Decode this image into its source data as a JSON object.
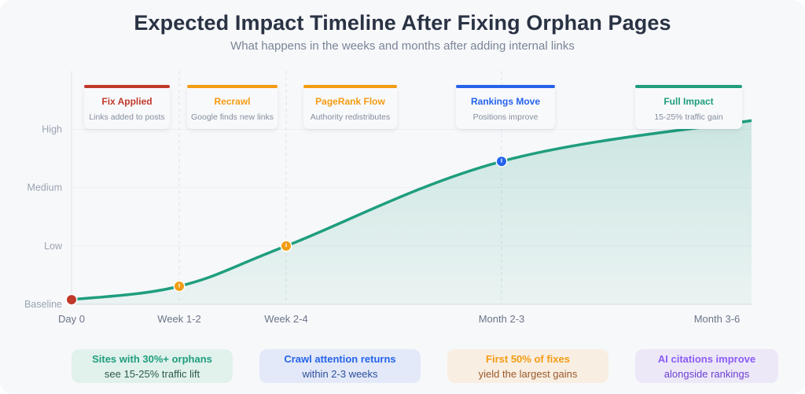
{
  "header": {
    "title": "Expected Impact Timeline After Fixing Orphan Pages",
    "subtitle": "What happens in the weeks and months after adding internal links"
  },
  "chart_data": {
    "type": "area",
    "title": "Expected Impact Timeline After Fixing Orphan Pages",
    "subtitle": "What happens in the weeks and months after adding internal links",
    "xlabel": "",
    "ylabel": "",
    "x_ticks": [
      "Day 0",
      "Week 1-2",
      "Week 2-4",
      "Month 2-3",
      "Month 3-6"
    ],
    "y_ticks": [
      "Baseline",
      "Low",
      "Medium",
      "High"
    ],
    "ylim": [
      0,
      3.3
    ],
    "grid": true,
    "series": [
      {
        "name": "Impact",
        "color": "#1f9e7e",
        "points": [
          {
            "x": "Day 0",
            "y": 0.08
          },
          {
            "x": "Week 1-2",
            "y": 0.31
          },
          {
            "x": "Week 2-4",
            "y": 1.0
          },
          {
            "x": "Month 2-3",
            "y": 2.45
          },
          {
            "x": "end",
            "y": 3.15
          }
        ]
      }
    ],
    "milestones": [
      {
        "x": "Day 0",
        "title": "Fix Applied",
        "desc": "Links added to posts",
        "color": "#c0392b",
        "marker": true
      },
      {
        "x": "Week 1-2",
        "title": "Recrawl",
        "desc": "Google finds new links",
        "color": "#f39c12",
        "marker": true
      },
      {
        "x": "Week 2-4",
        "title": "PageRank Flow",
        "desc": "Authority redistributes",
        "color": "#f39c12",
        "marker": true
      },
      {
        "x": "Month 2-3",
        "title": "Rankings Move",
        "desc": "Positions improve",
        "color": "#2563eb",
        "marker": true
      },
      {
        "x": "Month 3-6",
        "title": "Full Impact",
        "desc": "15-25% traffic gain",
        "color": "#1f9e7e",
        "marker": false
      }
    ]
  },
  "insights": [
    {
      "line1": "Sites with 30%+ orphans",
      "line2": "see 15-25% traffic lift",
      "bg": "#e1f1ec",
      "c1": "#1f9e7e",
      "c2": "#2c5a4c"
    },
    {
      "line1": "Crawl attention returns",
      "line2": "within 2-3 weeks",
      "bg": "#e3e9f8",
      "c1": "#2563eb",
      "c2": "#2d4f9c"
    },
    {
      "line1": "First 50% of fixes",
      "line2": "yield the largest gains",
      "bg": "#f8eee2",
      "c1": "#f39c12",
      "c2": "#9a5a2a"
    },
    {
      "line1": "AI citations improve",
      "line2": "alongside rankings",
      "bg": "#ece8f8",
      "c1": "#8b5cf6",
      "c2": "#6d3fd0"
    }
  ]
}
